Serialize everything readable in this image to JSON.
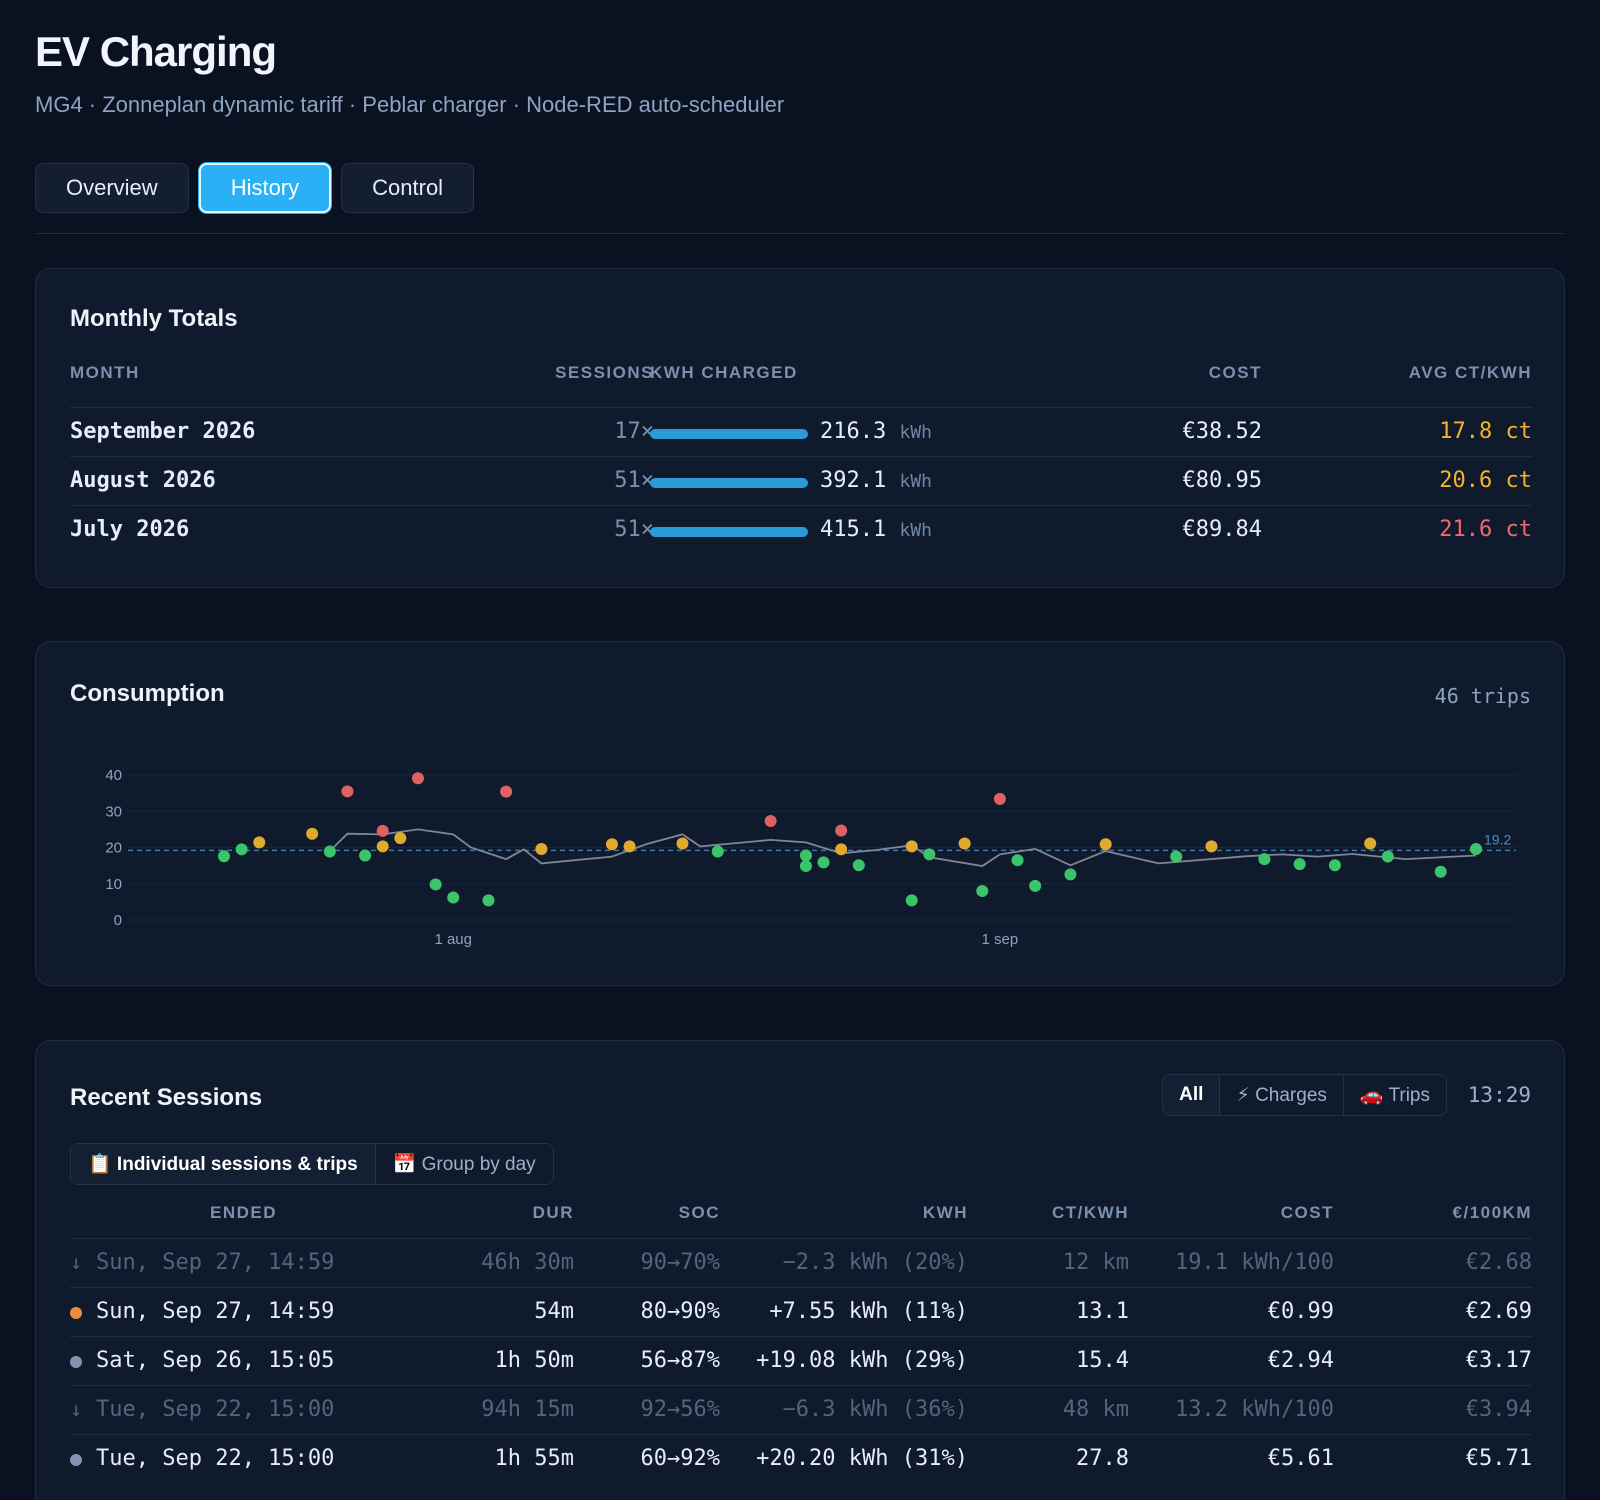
{
  "header": {
    "title": "EV Charging",
    "subtitle": "MG4 · Zonneplan dynamic tariff · Peblar charger · Node-RED auto-scheduler"
  },
  "tabs": [
    {
      "label": "Overview",
      "active": false
    },
    {
      "label": "History",
      "active": true
    },
    {
      "label": "Control",
      "active": false
    }
  ],
  "monthly_totals": {
    "title": "Monthly Totals",
    "columns": [
      "MONTH",
      "SESSIONS",
      "KWH CHARGED",
      "COST",
      "AVG CT/KWH"
    ],
    "rows": [
      {
        "month": "September 2026",
        "sessions": "17×",
        "kwh": "216.3",
        "unit": "kWh",
        "cost": "€38.52",
        "avg": "17.8 ct",
        "avg_color": "#f0b429"
      },
      {
        "month": "August 2026",
        "sessions": "51×",
        "kwh": "392.1",
        "unit": "kWh",
        "cost": "€80.95",
        "avg": "20.6 ct",
        "avg_color": "#f0b429"
      },
      {
        "month": "July 2026",
        "sessions": "51×",
        "kwh": "415.1",
        "unit": "kWh",
        "cost": "€89.84",
        "avg": "21.6 ct",
        "avg_color": "#f06b6b"
      }
    ]
  },
  "consumption": {
    "title": "Consumption",
    "trip_count": "46 trips"
  },
  "chart_data": {
    "type": "scatter",
    "title": "Consumption",
    "xlabel": "",
    "ylabel": "",
    "x_range": [
      "2026-07-13",
      "2026-09-28"
    ],
    "x_ticks": [
      {
        "label": "1 aug",
        "x": "2026-08-01"
      },
      {
        "label": "1 sep",
        "x": "2026-09-01"
      }
    ],
    "y_ticks": [
      0,
      10,
      20,
      30,
      40
    ],
    "ylim": [
      0,
      40
    ],
    "reference_line": {
      "value": 19.2,
      "label": "19.2"
    },
    "colors": {
      "good": "#3cc46a",
      "mid": "#e0ab2c",
      "high": "#e06161",
      "line": "#7d8797",
      "ref": "#3a78a8"
    },
    "points": [
      {
        "x": "2026-07-19",
        "y": 17.6,
        "level": "good"
      },
      {
        "x": "2026-07-20",
        "y": 19.5,
        "level": "good"
      },
      {
        "x": "2026-07-21",
        "y": 21.4,
        "level": "mid"
      },
      {
        "x": "2026-07-24",
        "y": 23.8,
        "level": "mid"
      },
      {
        "x": "2026-07-25",
        "y": 18.9,
        "level": "good"
      },
      {
        "x": "2026-07-26",
        "y": 35.5,
        "level": "high"
      },
      {
        "x": "2026-07-27",
        "y": 17.8,
        "level": "good"
      },
      {
        "x": "2026-07-28",
        "y": 24.6,
        "level": "high"
      },
      {
        "x": "2026-07-28",
        "y": 20.3,
        "level": "mid"
      },
      {
        "x": "2026-07-29",
        "y": 22.6,
        "level": "mid"
      },
      {
        "x": "2026-07-30",
        "y": 39.1,
        "level": "high"
      },
      {
        "x": "2026-07-31",
        "y": 9.8,
        "level": "good"
      },
      {
        "x": "2026-08-01",
        "y": 6.2,
        "level": "good"
      },
      {
        "x": "2026-08-03",
        "y": 5.4,
        "level": "good"
      },
      {
        "x": "2026-08-04",
        "y": 35.4,
        "level": "high"
      },
      {
        "x": "2026-08-06",
        "y": 19.6,
        "level": "mid"
      },
      {
        "x": "2026-08-10",
        "y": 20.9,
        "level": "mid"
      },
      {
        "x": "2026-08-11",
        "y": 20.3,
        "level": "mid"
      },
      {
        "x": "2026-08-14",
        "y": 21.1,
        "level": "mid"
      },
      {
        "x": "2026-08-16",
        "y": 18.9,
        "level": "good"
      },
      {
        "x": "2026-08-19",
        "y": 27.3,
        "level": "high"
      },
      {
        "x": "2026-08-21",
        "y": 17.8,
        "level": "good"
      },
      {
        "x": "2026-08-21",
        "y": 14.9,
        "level": "good"
      },
      {
        "x": "2026-08-22",
        "y": 15.9,
        "level": "good"
      },
      {
        "x": "2026-08-23",
        "y": 19.5,
        "level": "mid"
      },
      {
        "x": "2026-08-23",
        "y": 24.7,
        "level": "high"
      },
      {
        "x": "2026-08-24",
        "y": 15.1,
        "level": "good"
      },
      {
        "x": "2026-08-27",
        "y": 20.3,
        "level": "mid"
      },
      {
        "x": "2026-08-27",
        "y": 5.4,
        "level": "good"
      },
      {
        "x": "2026-08-28",
        "y": 18.1,
        "level": "good"
      },
      {
        "x": "2026-08-30",
        "y": 21.1,
        "level": "mid"
      },
      {
        "x": "2026-08-31",
        "y": 8.0,
        "level": "good"
      },
      {
        "x": "2026-09-01",
        "y": 33.4,
        "level": "high"
      },
      {
        "x": "2026-09-02",
        "y": 16.5,
        "level": "good"
      },
      {
        "x": "2026-09-03",
        "y": 9.4,
        "level": "good"
      },
      {
        "x": "2026-09-05",
        "y": 12.6,
        "level": "good"
      },
      {
        "x": "2026-09-07",
        "y": 20.9,
        "level": "mid"
      },
      {
        "x": "2026-09-11",
        "y": 17.5,
        "level": "good"
      },
      {
        "x": "2026-09-13",
        "y": 20.3,
        "level": "mid"
      },
      {
        "x": "2026-09-16",
        "y": 16.8,
        "level": "good"
      },
      {
        "x": "2026-09-18",
        "y": 15.4,
        "level": "good"
      },
      {
        "x": "2026-09-20",
        "y": 15.1,
        "level": "good"
      },
      {
        "x": "2026-09-22",
        "y": 21.1,
        "level": "mid"
      },
      {
        "x": "2026-09-23",
        "y": 17.5,
        "level": "good"
      },
      {
        "x": "2026-09-26",
        "y": 13.3,
        "level": "good"
      },
      {
        "x": "2026-09-28",
        "y": 19.6,
        "level": "good"
      }
    ],
    "trend_line": [
      {
        "x": "2026-07-25",
        "y": 19.0
      },
      {
        "x": "2026-07-26",
        "y": 23.8
      },
      {
        "x": "2026-07-28",
        "y": 23.6
      },
      {
        "x": "2026-07-30",
        "y": 25.0
      },
      {
        "x": "2026-08-01",
        "y": 23.6
      },
      {
        "x": "2026-08-02",
        "y": 20.0
      },
      {
        "x": "2026-08-04",
        "y": 16.8
      },
      {
        "x": "2026-08-05",
        "y": 19.5
      },
      {
        "x": "2026-08-06",
        "y": 15.6
      },
      {
        "x": "2026-08-10",
        "y": 17.5
      },
      {
        "x": "2026-08-12",
        "y": 21.0
      },
      {
        "x": "2026-08-14",
        "y": 23.6
      },
      {
        "x": "2026-08-15",
        "y": 20.3
      },
      {
        "x": "2026-08-19",
        "y": 22.1
      },
      {
        "x": "2026-08-21",
        "y": 21.4
      },
      {
        "x": "2026-08-23",
        "y": 18.4
      },
      {
        "x": "2026-08-25",
        "y": 19.3
      },
      {
        "x": "2026-08-27",
        "y": 20.6
      },
      {
        "x": "2026-08-28",
        "y": 17.3
      },
      {
        "x": "2026-08-31",
        "y": 14.9
      },
      {
        "x": "2026-09-01",
        "y": 18.1
      },
      {
        "x": "2026-09-03",
        "y": 19.6
      },
      {
        "x": "2026-09-05",
        "y": 15.1
      },
      {
        "x": "2026-09-07",
        "y": 19.0
      },
      {
        "x": "2026-09-10",
        "y": 15.6
      },
      {
        "x": "2026-09-15",
        "y": 17.6
      },
      {
        "x": "2026-09-17",
        "y": 18.1
      },
      {
        "x": "2026-09-19",
        "y": 17.5
      },
      {
        "x": "2026-09-21",
        "y": 18.2
      },
      {
        "x": "2026-09-24",
        "y": 16.8
      },
      {
        "x": "2026-09-28",
        "y": 17.8
      }
    ],
    "grid": true,
    "legend": "none"
  },
  "recent_sessions": {
    "title": "Recent Sessions",
    "filters": [
      "All",
      "⚡ Charges",
      "🚗 Trips"
    ],
    "clock": "13:29",
    "views": [
      "📋 Individual sessions & trips",
      "📅 Group by day"
    ],
    "columns": [
      "ENDED",
      "DUR",
      "SOC",
      "KWH",
      "CT/KWH",
      "COST",
      "€/100KM"
    ],
    "rows": [
      {
        "kind": "trip",
        "marker": "↓",
        "ended": "Sun, Sep 27, 14:59",
        "dur": "46h 30m",
        "soc": "90→70%",
        "kwh": "−2.3 kWh (20%)",
        "ct": "12 km",
        "cost": "19.1 kWh/100",
        "per100": "€2.68"
      },
      {
        "kind": "charge",
        "marker_color": "#f08a3c",
        "ended": "Sun, Sep 27, 14:59",
        "dur": "54m",
        "soc": "80→90%",
        "kwh": "+7.55 kWh (11%)",
        "ct": "13.1",
        "cost": "€0.99",
        "per100": "€2.69"
      },
      {
        "kind": "charge",
        "marker_color": "#8094b0",
        "ended": "Sat, Sep 26, 15:05",
        "dur": "1h 50m",
        "soc": "56→87%",
        "kwh": "+19.08 kWh (29%)",
        "ct": "15.4",
        "cost": "€2.94",
        "per100": "€3.17"
      },
      {
        "kind": "trip",
        "marker": "↓",
        "ended": "Tue, Sep 22, 15:00",
        "dur": "94h 15m",
        "soc": "92→56%",
        "kwh": "−6.3 kWh (36%)",
        "ct": "48 km",
        "cost": "13.2 kWh/100",
        "per100": "€3.94"
      },
      {
        "kind": "charge",
        "marker_color": "#8094b0",
        "ended": "Tue, Sep 22, 15:00",
        "dur": "1h 55m",
        "soc": "60→92%",
        "kwh": "+20.20 kWh (31%)",
        "ct": "27.8",
        "cost": "€5.61",
        "per100": "€5.71"
      }
    ]
  }
}
